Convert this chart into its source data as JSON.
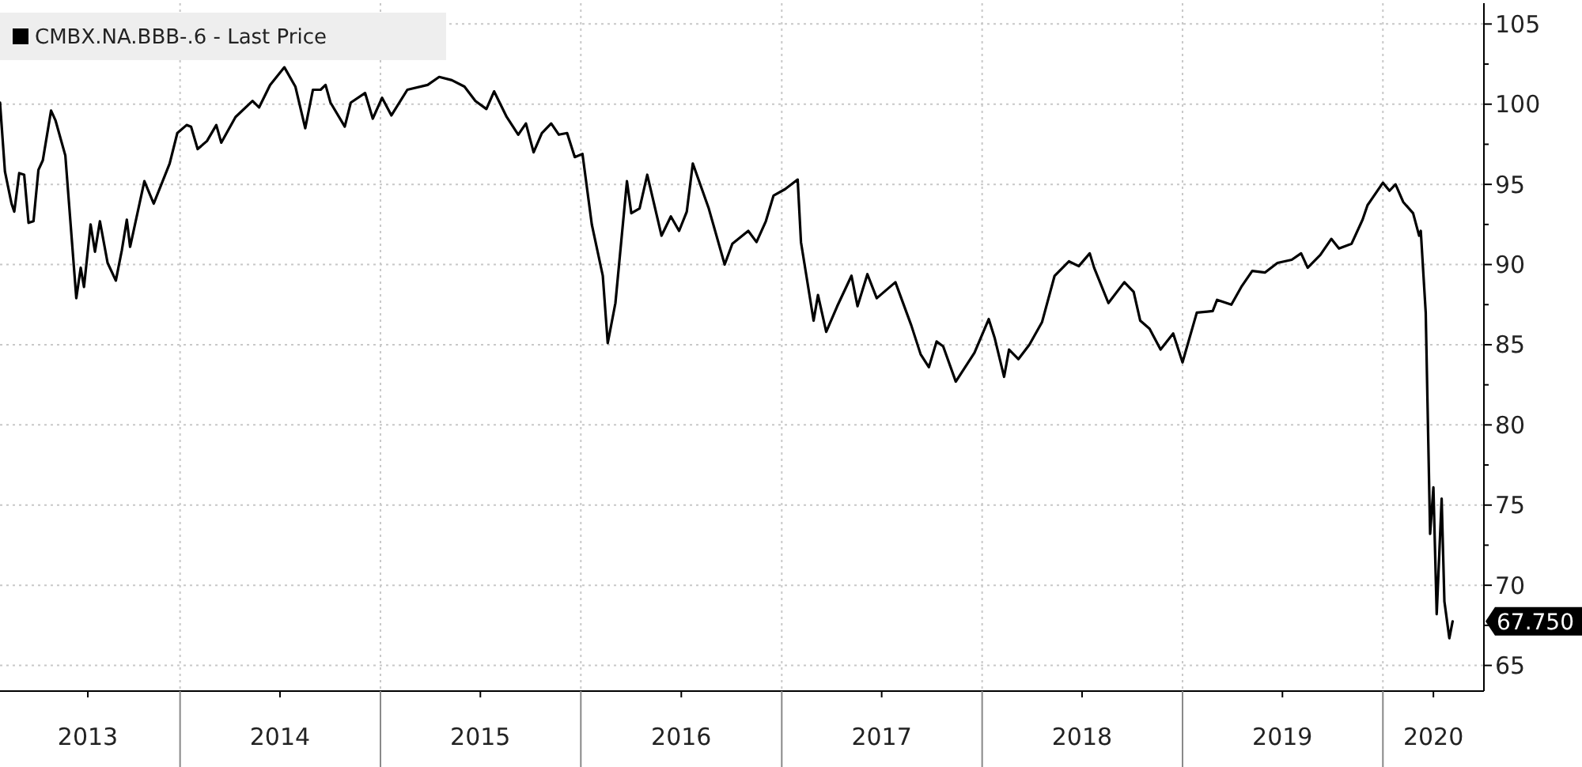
{
  "chart_data": {
    "type": "line",
    "legend": "top left",
    "grid": true,
    "line_style": "solid",
    "marker": "none",
    "xlim": [
      "2013-02-07",
      "2020-07-03"
    ],
    "xticks": [
      {
        "value": "2013-07-17",
        "label": "2013"
      },
      {
        "value": "2014-01-01",
        "label": null
      },
      {
        "value": "2014-07-02",
        "label": "2014"
      },
      {
        "value": "2015-01-01",
        "label": null
      },
      {
        "value": "2015-07-02",
        "label": "2015"
      },
      {
        "value": "2016-01-01",
        "label": null
      },
      {
        "value": "2016-07-02",
        "label": "2016"
      },
      {
        "value": "2017-01-01",
        "label": null
      },
      {
        "value": "2017-07-02",
        "label": "2017"
      },
      {
        "value": "2018-01-01",
        "label": null
      },
      {
        "value": "2018-07-02",
        "label": "2018"
      },
      {
        "value": "2019-01-01",
        "label": null
      },
      {
        "value": "2019-07-02",
        "label": "2019"
      },
      {
        "value": "2020-01-01",
        "label": null
      },
      {
        "value": "2020-04-02",
        "label": "2020"
      }
    ],
    "ylim": [
      63.4,
      106.3
    ],
    "yticks": [
      65,
      {
        "value": 67.5,
        "label": null
      },
      70,
      {
        "value": 72.5,
        "label": null
      },
      75,
      {
        "value": 77.5,
        "label": null
      },
      80,
      {
        "value": 82.5,
        "label": null
      },
      85,
      {
        "value": 87.5,
        "label": null
      },
      90,
      {
        "value": 92.5,
        "label": null
      },
      95,
      {
        "value": 97.5,
        "label": null
      },
      100,
      {
        "value": 102.5,
        "label": null
      },
      105
    ],
    "annotations": [
      {
        "text": "67.750",
        "x": "2020-05-07",
        "y": 67.75
      }
    ],
    "series": [
      {
        "name": "CMBX.NA.BBB-.6 - Last Price",
        "color": "#000000",
        "x": [
          "2013-02-07",
          "2013-02-16",
          "2013-02-28",
          "2013-03-05",
          "2013-03-14",
          "2013-03-23",
          "2013-03-31",
          "2013-04-09",
          "2013-04-18",
          "2013-04-26",
          "2013-05-11",
          "2013-05-19",
          "2013-06-06",
          "2013-06-26",
          "2013-07-04",
          "2013-07-10",
          "2013-07-22",
          "2013-07-30",
          "2013-08-08",
          "2013-08-22",
          "2013-09-06",
          "2013-09-17",
          "2013-09-26",
          "2013-10-02",
          "2013-10-28",
          "2013-11-14",
          "2013-12-13",
          "2013-12-27",
          "2014-01-13",
          "2014-01-21",
          "2014-02-02",
          "2014-02-19",
          "2014-03-08",
          "2014-03-17",
          "2014-04-12",
          "2014-05-13",
          "2014-05-25",
          "2014-06-14",
          "2014-07-10",
          "2014-07-30",
          "2014-08-17",
          "2014-08-31",
          "2014-09-14",
          "2014-09-23",
          "2014-10-02",
          "2014-10-28",
          "2014-11-08",
          "2014-12-04",
          "2014-12-18",
          "2015-01-04",
          "2015-01-21",
          "2015-02-19",
          "2015-03-28",
          "2015-04-18",
          "2015-05-11",
          "2015-06-03",
          "2015-06-23",
          "2015-07-13",
          "2015-07-27",
          "2015-08-19",
          "2015-09-09",
          "2015-09-23",
          "2015-10-07",
          "2015-10-22",
          "2015-11-08",
          "2015-11-22",
          "2015-12-07",
          "2015-12-21",
          "2016-01-04",
          "2016-01-21",
          "2016-02-10",
          "2016-02-19",
          "2016-03-04",
          "2016-03-25",
          "2016-04-02",
          "2016-04-17",
          "2016-05-01",
          "2016-05-27",
          "2016-06-13",
          "2016-06-28",
          "2016-07-12",
          "2016-07-23",
          "2016-08-21",
          "2016-09-19",
          "2016-10-03",
          "2016-11-01",
          "2016-11-16",
          "2016-12-03",
          "2016-12-17",
          "2017-01-07",
          "2017-01-30",
          "2017-02-05",
          "2017-02-28",
          "2017-03-08",
          "2017-03-23",
          "2017-04-12",
          "2017-05-08",
          "2017-05-19",
          "2017-06-06",
          "2017-06-23",
          "2017-07-27",
          "2017-08-25",
          "2017-09-11",
          "2017-09-26",
          "2017-10-10",
          "2017-10-22",
          "2017-11-14",
          "2017-12-18",
          "2018-01-13",
          "2018-01-24",
          "2018-02-10",
          "2018-02-19",
          "2018-03-08",
          "2018-03-28",
          "2018-04-20",
          "2018-05-13",
          "2018-06-08",
          "2018-06-26",
          "2018-07-16",
          "2018-07-24",
          "2018-08-19",
          "2018-09-17",
          "2018-10-04",
          "2018-10-16",
          "2018-11-02",
          "2018-11-22",
          "2018-12-15",
          "2019-01-01",
          "2019-01-27",
          "2019-02-25",
          "2019-03-05",
          "2019-03-31",
          "2019-04-18",
          "2019-05-08",
          "2019-05-31",
          "2019-06-23",
          "2019-07-19",
          "2019-08-05",
          "2019-08-17",
          "2019-09-09",
          "2019-09-29",
          "2019-10-13",
          "2019-11-05",
          "2019-11-25",
          "2019-12-04",
          "2020-01-01",
          "2020-01-13",
          "2020-01-24",
          "2020-02-07",
          "2020-02-25",
          "2020-03-07",
          "2020-03-10",
          "2020-03-19",
          "2020-03-27",
          "2020-04-02",
          "2020-04-08",
          "2020-04-17",
          "2020-04-22",
          "2020-05-01",
          "2020-05-07"
        ],
        "values": [
          100.1,
          95.8,
          93.8,
          93.3,
          95.7,
          95.6,
          92.6,
          92.7,
          95.9,
          96.5,
          99.6,
          99.0,
          96.8,
          87.9,
          89.8,
          88.6,
          92.5,
          90.8,
          92.7,
          90.1,
          89.0,
          90.9,
          92.8,
          91.1,
          95.2,
          93.8,
          96.3,
          98.2,
          98.7,
          98.6,
          97.2,
          97.7,
          98.7,
          97.6,
          99.2,
          100.2,
          99.8,
          101.2,
          102.3,
          101.1,
          98.5,
          100.9,
          100.9,
          101.2,
          100.1,
          98.6,
          100.1,
          100.7,
          99.1,
          100.4,
          99.3,
          100.9,
          101.2,
          101.7,
          101.5,
          101.1,
          100.2,
          99.7,
          100.8,
          99.2,
          98.1,
          98.8,
          97.0,
          98.2,
          98.8,
          98.1,
          98.2,
          96.7,
          96.9,
          92.5,
          89.3,
          85.1,
          87.6,
          95.2,
          93.2,
          93.5,
          95.6,
          91.8,
          93.0,
          92.1,
          93.3,
          96.3,
          93.5,
          90.0,
          91.3,
          92.1,
          91.4,
          92.7,
          94.3,
          94.7,
          95.3,
          91.4,
          86.5,
          88.1,
          85.8,
          87.4,
          89.3,
          87.4,
          89.4,
          87.9,
          88.9,
          86.2,
          84.4,
          83.6,
          85.2,
          84.9,
          82.7,
          84.5,
          86.6,
          85.4,
          83.0,
          84.7,
          84.1,
          85.0,
          86.4,
          89.3,
          90.2,
          89.9,
          90.7,
          89.8,
          87.6,
          88.9,
          88.3,
          86.5,
          86.0,
          84.7,
          85.7,
          83.9,
          87.0,
          87.1,
          87.8,
          87.5,
          88.6,
          89.6,
          89.5,
          90.1,
          90.3,
          90.7,
          89.8,
          90.6,
          91.6,
          91.0,
          91.3,
          92.8,
          93.7,
          95.1,
          94.6,
          95.0,
          93.9,
          93.2,
          91.8,
          92.1,
          87.0,
          73.2,
          76.1,
          68.2,
          75.4,
          69.0,
          66.7,
          67.75
        ]
      }
    ]
  }
}
